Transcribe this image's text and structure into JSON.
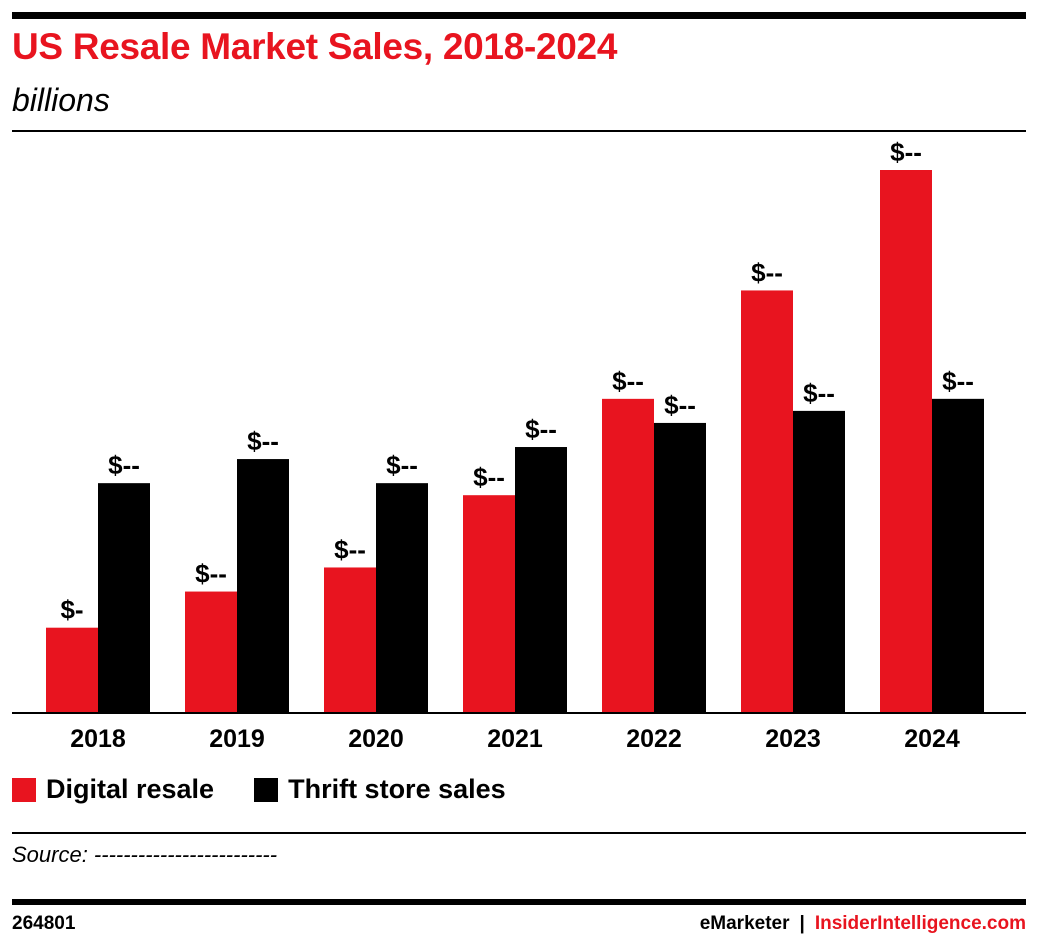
{
  "header": {
    "title": "US Resale Market Sales, 2018-2024",
    "subtitle": "billions"
  },
  "colors": {
    "accent": "#e8141f",
    "digital_resale": "#e8141f",
    "thrift_store_sales": "#000000"
  },
  "chart_data": {
    "type": "bar",
    "title": "US Resale Market Sales, 2018-2024",
    "subtitle": "billions",
    "xlabel": "",
    "ylabel": "",
    "categories": [
      "2018",
      "2019",
      "2020",
      "2021",
      "2022",
      "2023",
      "2024"
    ],
    "series": [
      {
        "name": "Digital resale",
        "color": "#e8141f",
        "values": [
          7,
          10,
          12,
          18,
          26,
          35,
          45
        ],
        "labels": [
          "$-",
          "$--",
          "$--",
          "$--",
          "$--",
          "$--",
          "$--"
        ]
      },
      {
        "name": "Thrift store sales",
        "color": "#000000",
        "values": [
          19,
          21,
          19,
          22,
          24,
          25,
          26
        ],
        "labels": [
          "$--",
          "$--",
          "$--",
          "$--",
          "$--",
          "$--",
          "$--"
        ]
      }
    ],
    "ylim": [
      0,
      45
    ],
    "grid": false,
    "legend_position": "bottom-left"
  },
  "legend": [
    {
      "label": "Digital resale",
      "color": "#e8141f"
    },
    {
      "label": "Thrift store sales",
      "color": "#000000"
    }
  ],
  "footer": {
    "source": "Source: -------------------------",
    "chart_id": "264801",
    "brand_left": "eMarketer",
    "brand_separator": "|",
    "brand_right": "InsiderIntelligence.com"
  }
}
